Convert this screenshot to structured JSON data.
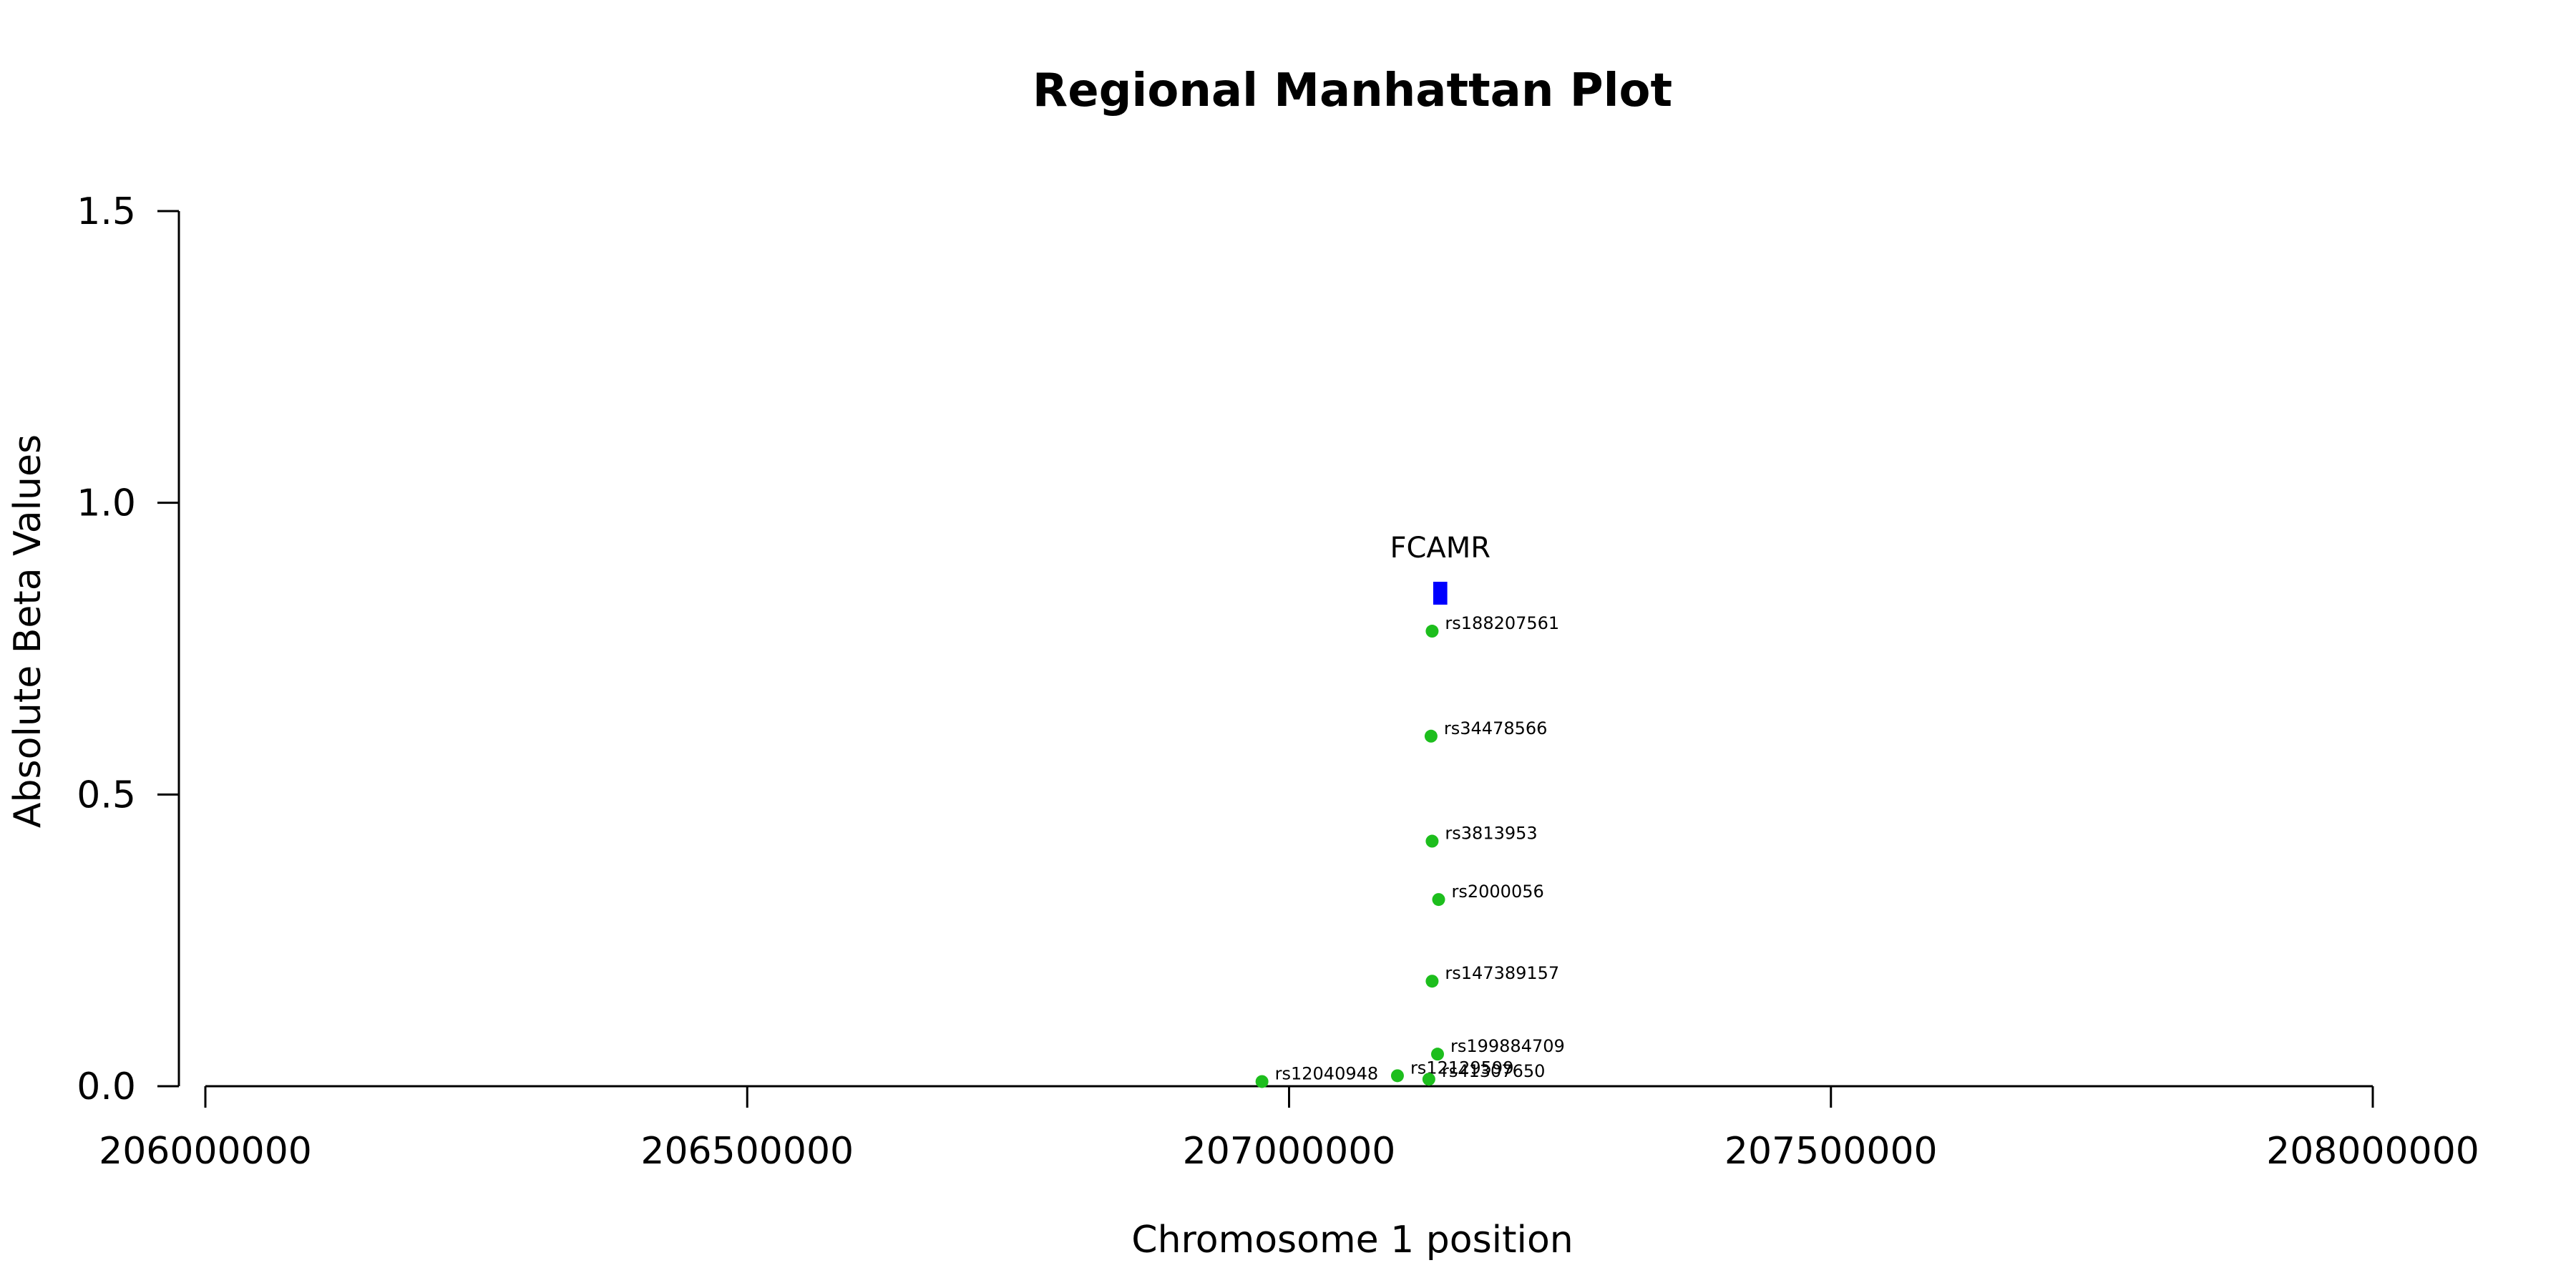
{
  "chart_data": {
    "type": "scatter",
    "title": "Regional Manhattan Plot",
    "xlabel": "Chromosome 1 position",
    "ylabel": "Absolute Beta Values",
    "xlim": [
      206000000,
      208000000
    ],
    "ylim": [
      0,
      1.5
    ],
    "xticks": [
      "206000000",
      "206500000",
      "207000000",
      "207500000",
      "208000000"
    ],
    "yticks": [
      "0.0",
      "0.5",
      "1.0",
      "1.5"
    ],
    "grid": false,
    "point_color": "#1DBE1D",
    "gene_color": "#0000FF",
    "points": [
      {
        "label": "rs188207561",
        "x": 207132000,
        "y": 0.78
      },
      {
        "label": "rs34478566",
        "x": 207131000,
        "y": 0.6
      },
      {
        "label": "rs3813953",
        "x": 207132000,
        "y": 0.42
      },
      {
        "label": "rs2000056",
        "x": 207138000,
        "y": 0.32
      },
      {
        "label": "rs147389157",
        "x": 207132000,
        "y": 0.18
      },
      {
        "label": "rs199884709",
        "x": 207137000,
        "y": 0.055
      },
      {
        "label": "rs12040948",
        "x": 206975000,
        "y": 0.008
      },
      {
        "label": "rs12129599",
        "x": 207100000,
        "y": 0.018
      },
      {
        "label": "rs41307650",
        "x": 207129000,
        "y": 0.012
      }
    ],
    "genes": [
      {
        "name": "FCAMR",
        "start": 207133000,
        "end": 207146000,
        "y": 0.845
      }
    ]
  }
}
